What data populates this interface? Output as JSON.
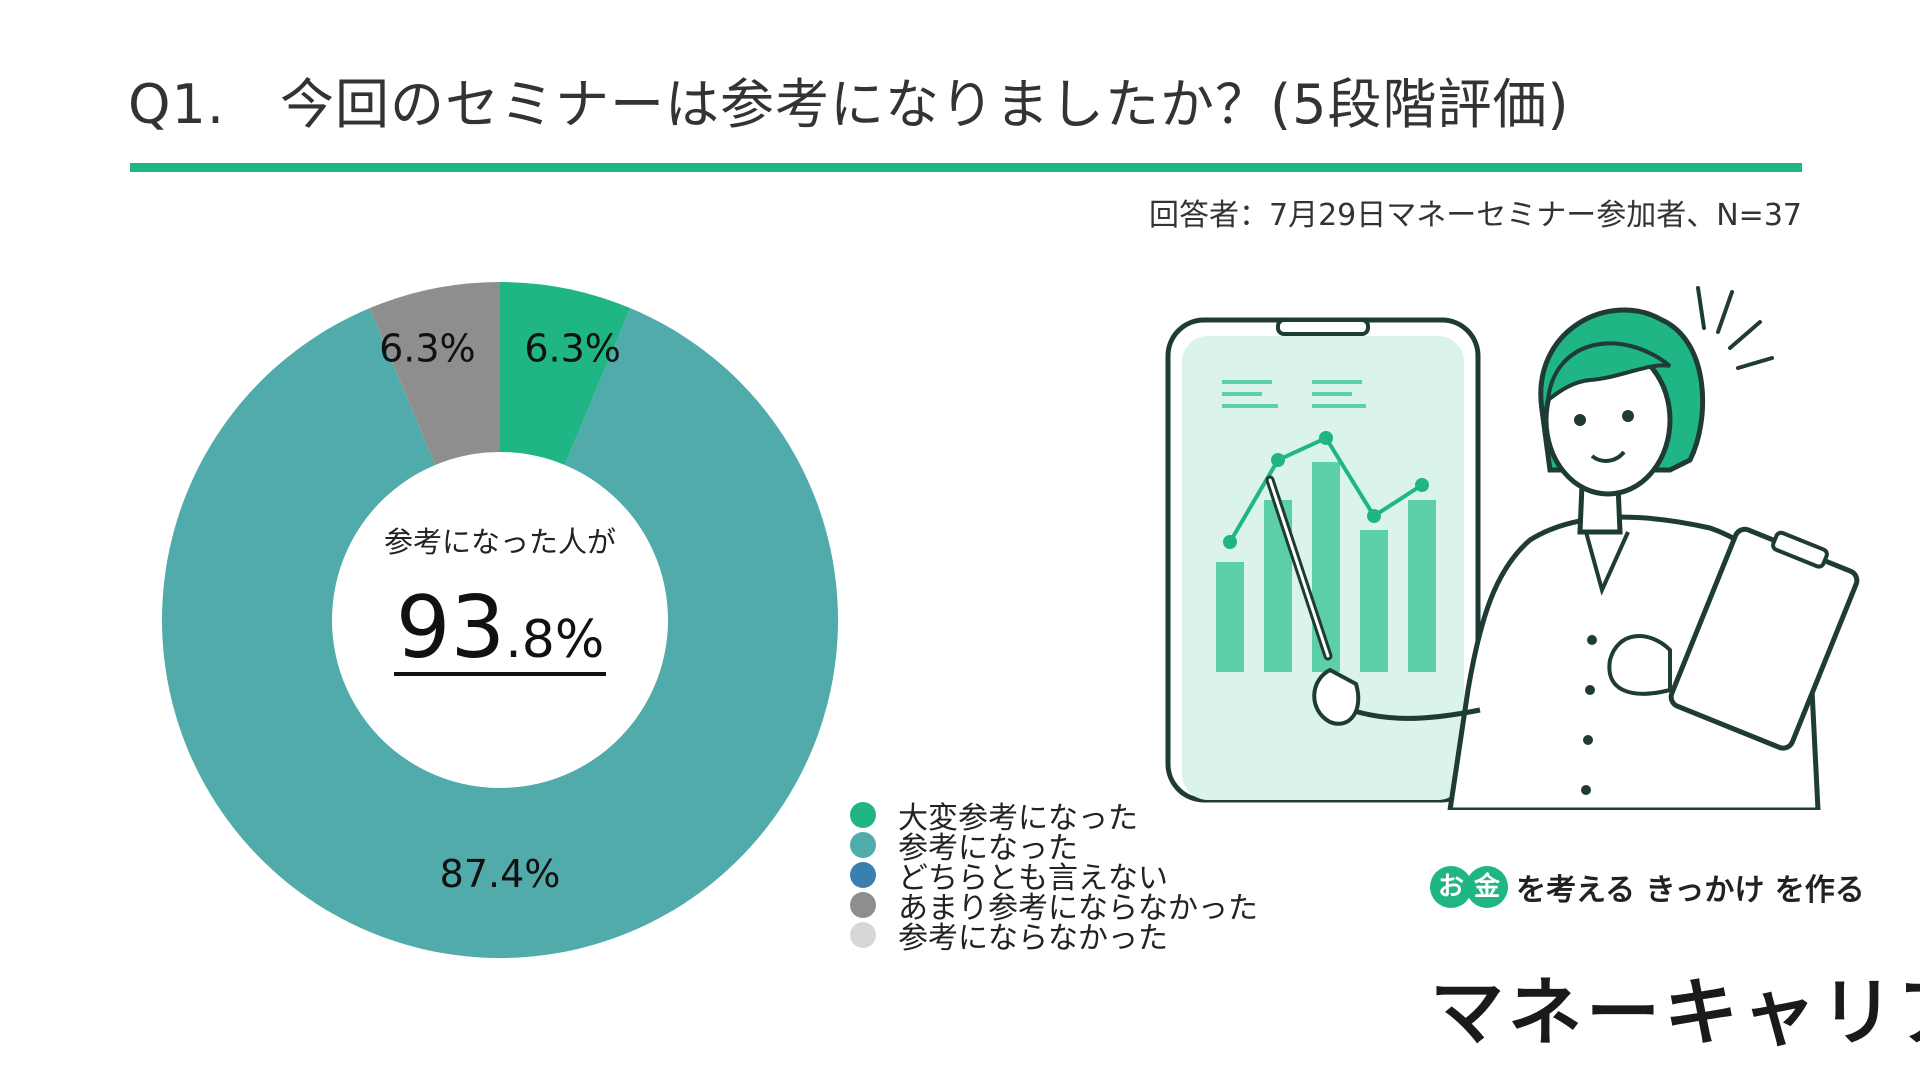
{
  "header": {
    "title": "Q1.　今回のセミナーは参考になりましたか？(5段階評価)",
    "respondents": "回答者：7月29日マネーセミナー参加者、N=37"
  },
  "chart_data": {
    "type": "pie",
    "donut": true,
    "categories": [
      "大変参考になった",
      "参考になった",
      "どちらとも言えない",
      "あまり参考にならなかった",
      "参考にならなかった"
    ],
    "values": [
      6.3,
      87.4,
      0,
      6.3,
      0
    ],
    "data_labels": [
      "6.3%",
      "87.4%",
      "",
      "6.3%",
      ""
    ],
    "colors": [
      "#1fb585",
      "#52abab",
      "#3a7fae",
      "#8e8e8e",
      "#d7d7d7"
    ],
    "center_caption": "参考になった人が",
    "center_value_major": "93",
    "center_value_minor": ".8%",
    "legend_position": "bottom-right"
  },
  "logo": {
    "okane": "お金",
    "tagline": "を考える きっかけ を作る",
    "brand": "マネーキャリア"
  },
  "illustration": {
    "icon": "presenter-with-phone-chart-icon"
  }
}
